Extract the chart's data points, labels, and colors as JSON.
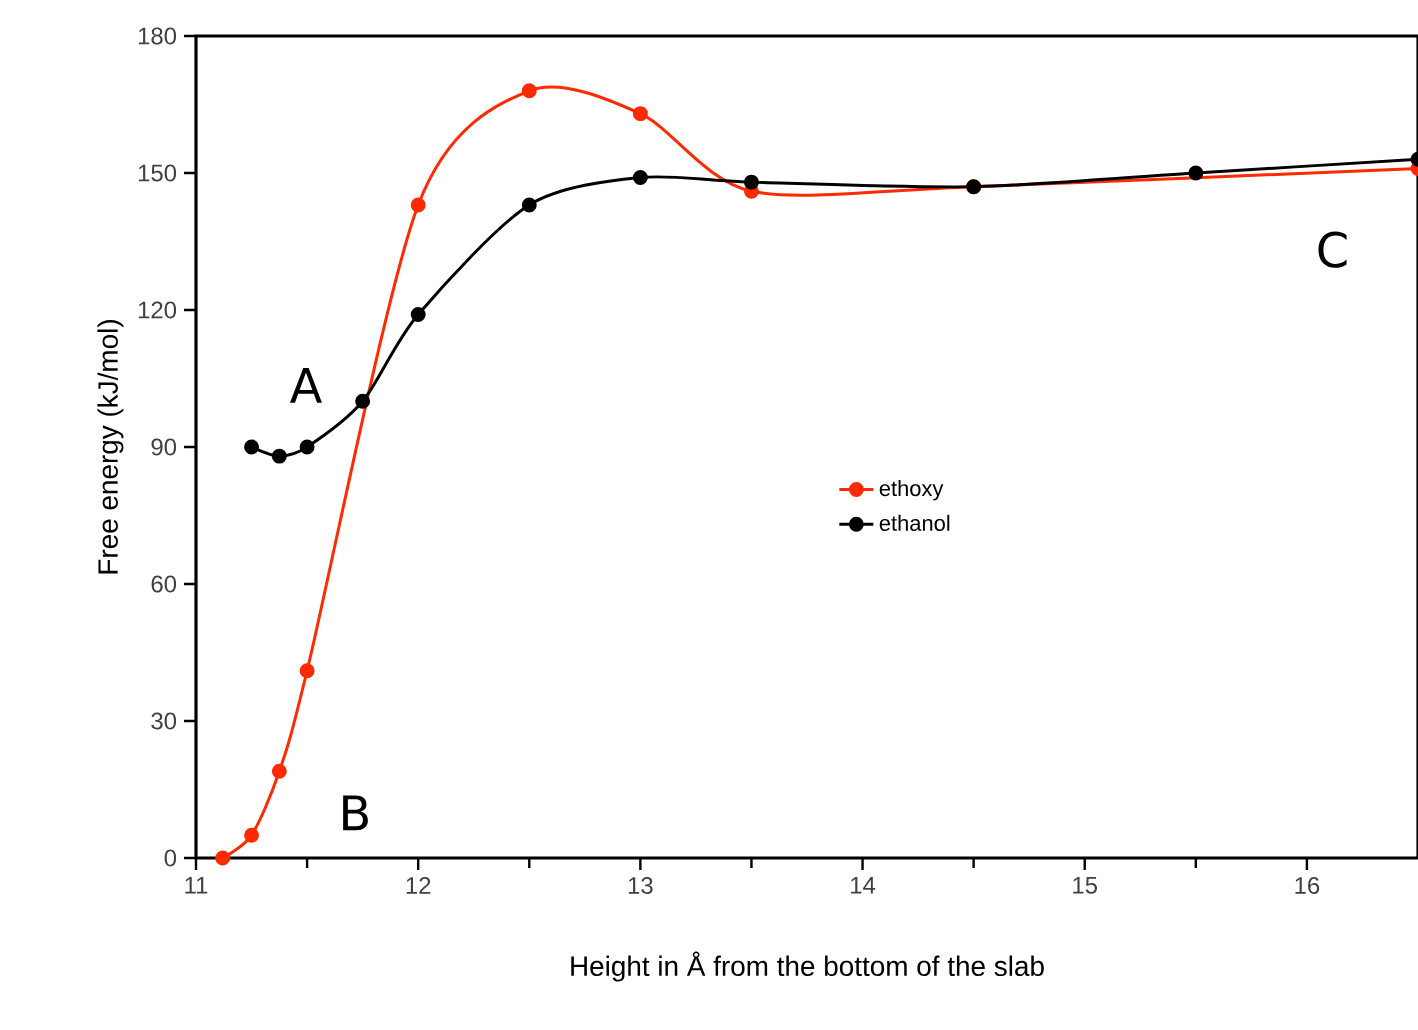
{
  "chart_data": {
    "type": "line",
    "xlabel": "Height in Å from the bottom of the slab",
    "ylabel": "Free energy (kJ/mol)",
    "xlim": [
      11,
      16.5
    ],
    "xticks": [
      11,
      12,
      13,
      14,
      15,
      16
    ],
    "ylim": [
      0,
      180
    ],
    "yticks": [
      0,
      30,
      60,
      90,
      120,
      150,
      180
    ],
    "series": [
      {
        "name": "ethoxy",
        "color": "#ff2a00",
        "x": [
          11.12,
          11.25,
          11.375,
          11.5,
          12,
          12.5,
          13,
          13.5,
          14.5,
          16.5
        ],
        "values": [
          0,
          5,
          19,
          41,
          143,
          168,
          163,
          146,
          147,
          151
        ]
      },
      {
        "name": "ethanol",
        "color": "#000000",
        "x": [
          11.25,
          11.375,
          11.5,
          11.75,
          12,
          12.5,
          13,
          13.5,
          14.5,
          15.5,
          16.5
        ],
        "values": [
          90,
          88,
          90,
          100,
          119,
          143,
          149,
          148,
          147,
          150,
          153
        ]
      }
    ],
    "annotations": [
      "A",
      "B",
      "C"
    ],
    "legend": "center",
    "marker": "circle",
    "line_style": "solid",
    "grid": false
  }
}
